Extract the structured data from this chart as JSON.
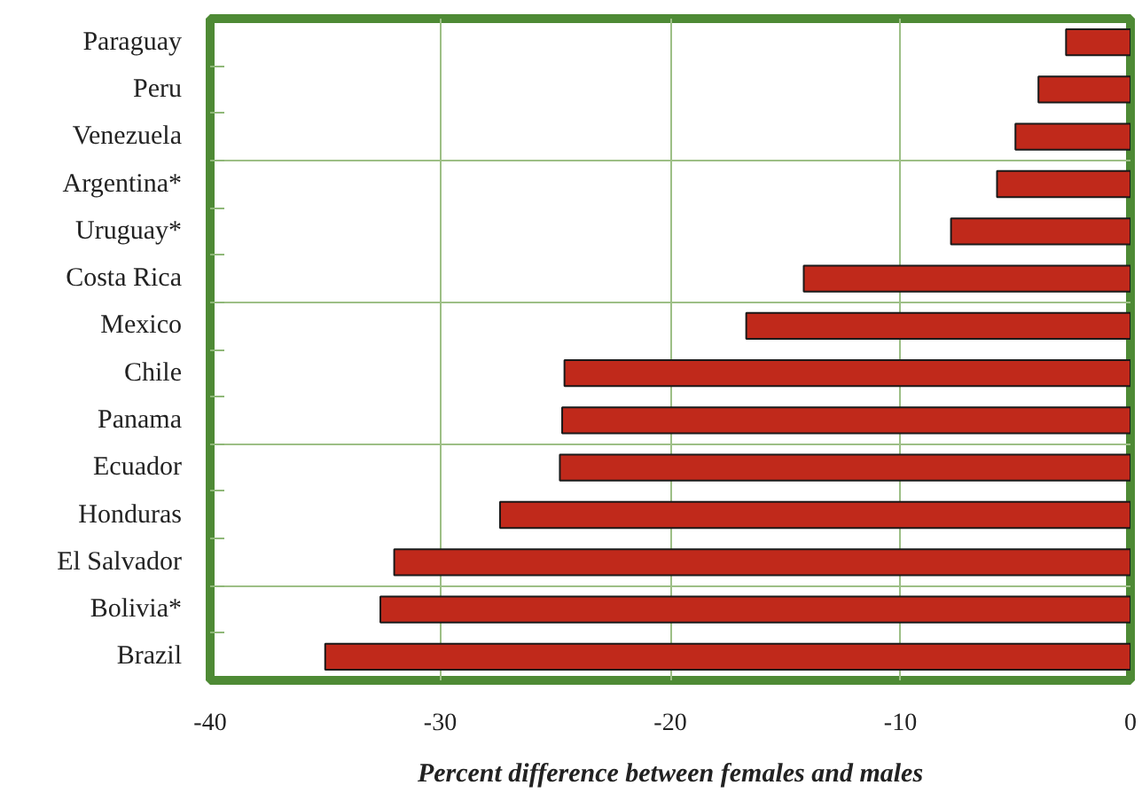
{
  "chart_data": {
    "type": "bar",
    "orientation": "horizontal",
    "xlabel": "Percent difference between females and males",
    "categories": [
      "Paraguay",
      "Peru",
      "Venezuela",
      "Argentina*",
      "Uruguay*",
      "Costa Rica",
      "Mexico",
      "Chile",
      "Panama",
      "Ecuador",
      "Honduras",
      "El Salvador",
      "Bolivia*",
      "Brazil"
    ],
    "values": [
      -2.8,
      -4.0,
      -5.0,
      -5.8,
      -7.8,
      -14.2,
      -16.7,
      -24.6,
      -24.7,
      -24.8,
      -27.4,
      -32.0,
      -32.6,
      -35.0
    ],
    "color": "#c0291b",
    "xlim": [
      -40,
      0
    ],
    "xticks": [
      -40,
      -30,
      -20,
      -10,
      0
    ],
    "grid": true
  }
}
